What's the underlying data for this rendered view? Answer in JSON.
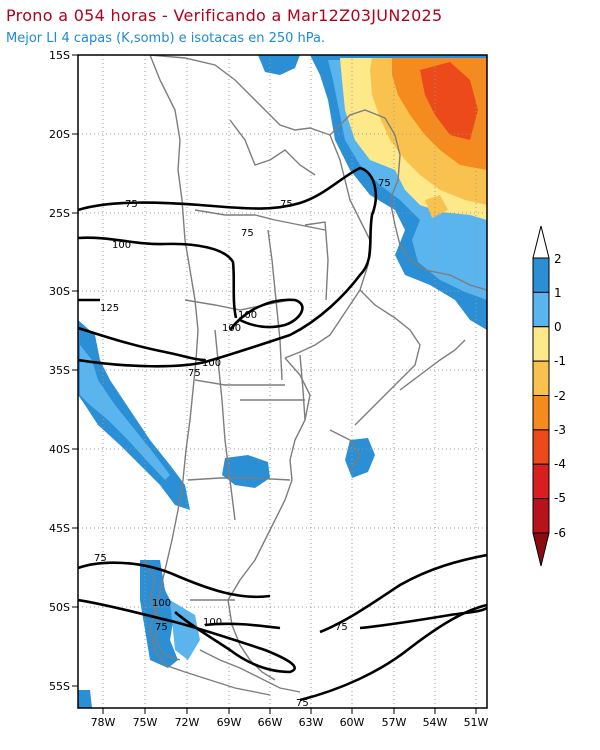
{
  "header": {
    "title": "Prono a 054 horas - Verificando a Mar12Z03JUN2025",
    "subtitle": "Mejor LI 4 capas (K,somb) e isotacas en 250 hPa."
  },
  "map": {
    "lat_labels": [
      "15S",
      "20S",
      "25S",
      "30S",
      "35S",
      "40S",
      "45S",
      "50S",
      "55S"
    ],
    "lon_labels": [
      "78W",
      "75W",
      "72W",
      "69W",
      "66W",
      "63W",
      "60W",
      "57W",
      "54W",
      "51W"
    ],
    "isotach_labels": [
      "75",
      "100",
      "125",
      "75",
      "100",
      "75",
      "75",
      "100",
      "100",
      "75",
      "100",
      "75",
      "75",
      "75",
      "75"
    ]
  },
  "colorbar": {
    "labels": [
      "2",
      "1",
      "0",
      "-1",
      "-2",
      "-3",
      "-4",
      "-5",
      "-6"
    ],
    "colors": [
      "#2b8fd6",
      "#5ab4ee",
      "#fde98a",
      "#f9c24f",
      "#f58a1f",
      "#ec4a1a",
      "#d81e1e",
      "#b8121a",
      "#8c0a12"
    ],
    "top_color": "#ffffff"
  }
}
